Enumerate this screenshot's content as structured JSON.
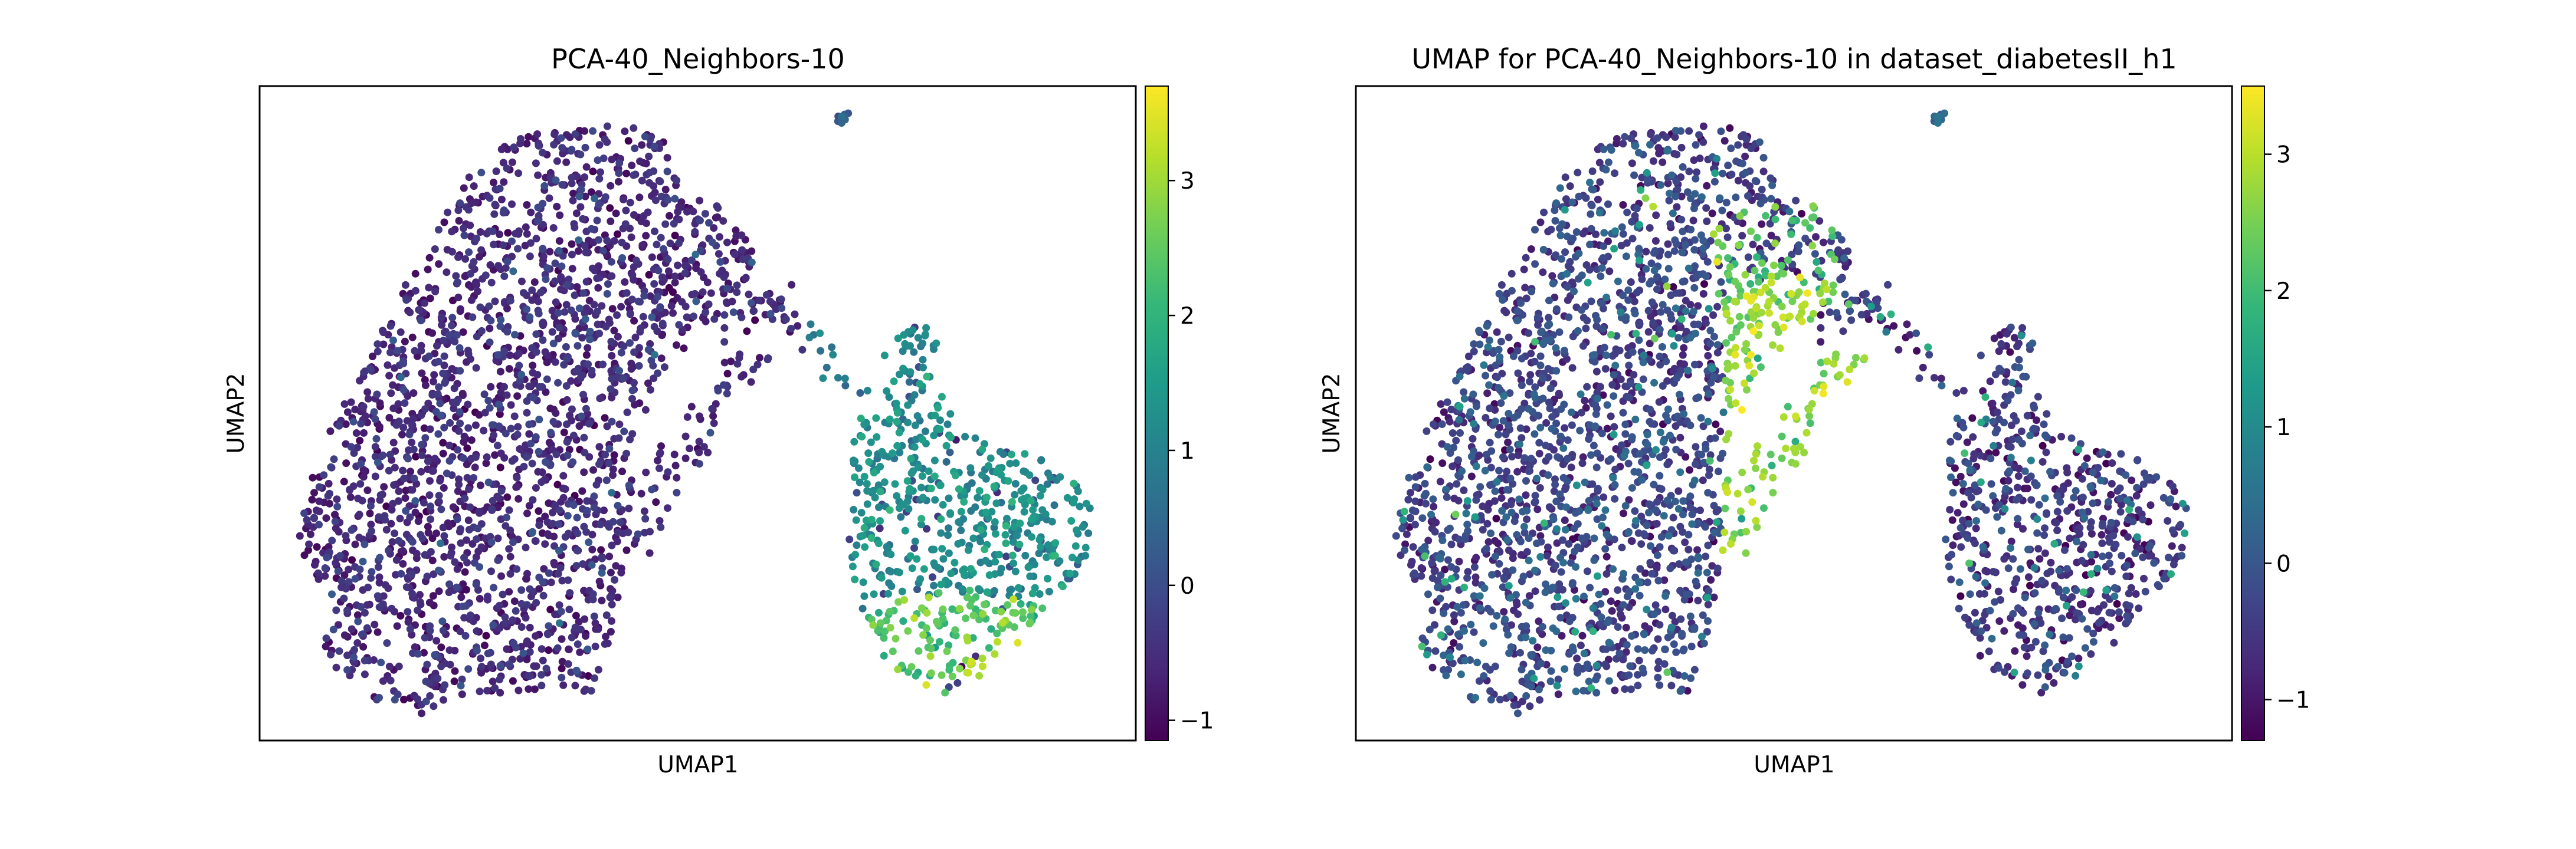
{
  "chart_data": [
    {
      "type": "scatter",
      "title": "PCA-40_Neighbors-10",
      "xlabel": "UMAP1",
      "ylabel": "UMAP2",
      "xticks": [],
      "yticks": [],
      "colormap": "viridis",
      "colorbar": {
        "min": -1.15,
        "max": 3.7,
        "ticks": [
          -1,
          0,
          1,
          2,
          3
        ],
        "tick_labels": [
          "−1",
          "0",
          "1",
          "2",
          "3"
        ]
      },
      "pattern": "clusters_high_right"
    },
    {
      "type": "scatter",
      "title": "UMAP for PCA-40_Neighbors-10 in dataset_diabetesII_h1",
      "xlabel": "UMAP1",
      "ylabel": "UMAP2",
      "xticks": [],
      "yticks": [],
      "colormap": "viridis",
      "colorbar": {
        "min": -1.3,
        "max": 3.5,
        "ticks": [
          -1,
          0,
          1,
          2,
          3
        ],
        "tick_labels": [
          "−1",
          "0",
          "1",
          "2",
          "3"
        ]
      },
      "pattern": "band_high_middle"
    }
  ],
  "colors": {
    "viridis": [
      "#440154",
      "#482878",
      "#3e4989",
      "#31688e",
      "#26828e",
      "#1f9e89",
      "#35b779",
      "#6ece58",
      "#b5de2b",
      "#fde725"
    ],
    "frame": "#000000",
    "background": "#ffffff"
  }
}
